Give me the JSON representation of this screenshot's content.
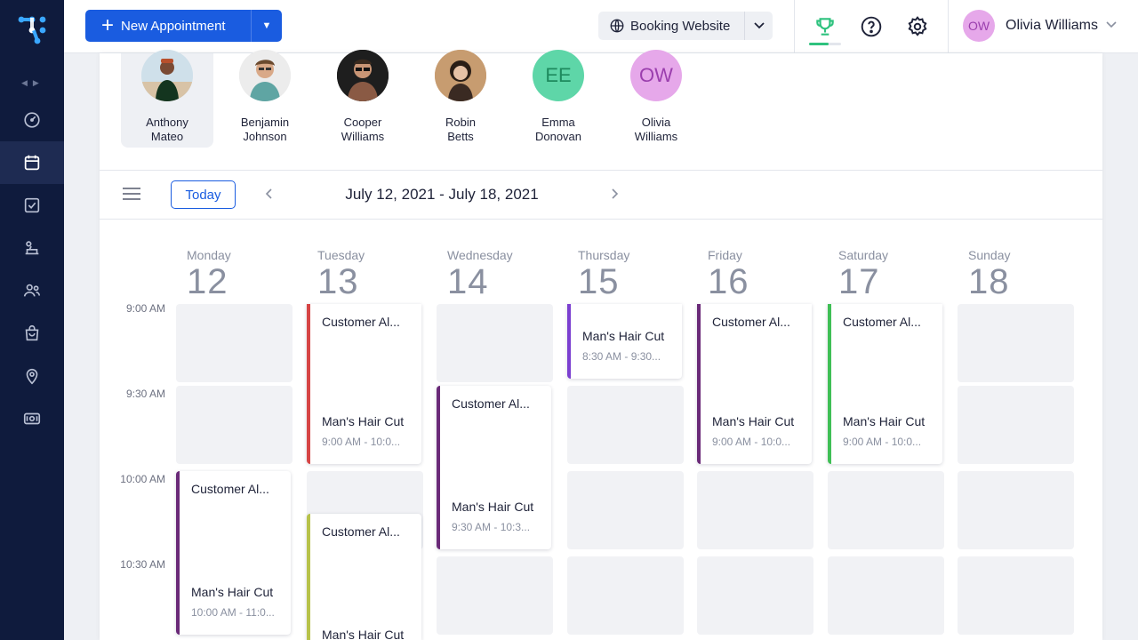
{
  "sidebar": {
    "items": [
      {
        "name": "dashboard-icon"
      },
      {
        "name": "calendar-icon"
      },
      {
        "name": "tasks-icon"
      },
      {
        "name": "services-icon"
      },
      {
        "name": "customers-icon"
      },
      {
        "name": "products-icon"
      },
      {
        "name": "locations-icon"
      },
      {
        "name": "payments-icon"
      }
    ],
    "active": "calendar-icon"
  },
  "header": {
    "new_appointment_label": "New Appointment",
    "booking_website_label": "Booking Website",
    "user_initials": "OW",
    "user_name": "Olivia Williams"
  },
  "staff": [
    {
      "first": "Anthony",
      "last": "Mateo",
      "initials": "",
      "selected": true
    },
    {
      "first": "Benjamin",
      "last": "Johnson",
      "initials": ""
    },
    {
      "first": "Cooper",
      "last": "Williams",
      "initials": ""
    },
    {
      "first": "Robin",
      "last": "Betts",
      "initials": ""
    },
    {
      "first": "Emma",
      "last": "Donovan",
      "initials": "EE"
    },
    {
      "first": "Olivia",
      "last": "Williams",
      "initials": "OW"
    }
  ],
  "toolbar": {
    "today_label": "Today",
    "date_range": "July 12, 2021 - July 18, 2021"
  },
  "calendar": {
    "days": [
      {
        "name": "Monday",
        "date": "12"
      },
      {
        "name": "Tuesday",
        "date": "13"
      },
      {
        "name": "Wednesday",
        "date": "14"
      },
      {
        "name": "Thursday",
        "date": "15"
      },
      {
        "name": "Friday",
        "date": "16"
      },
      {
        "name": "Saturday",
        "date": "17"
      },
      {
        "name": "Sunday",
        "date": "18"
      }
    ],
    "times": [
      "9:00 AM",
      "9:30 AM",
      "10:00 AM",
      "10:30 AM"
    ],
    "appointments": [
      {
        "customer": "Customer Al...",
        "service": "Man's Hair Cut",
        "time": "10:00 AM - 11:0...",
        "color": "#6a2a78"
      },
      {
        "customer": "Customer Al...",
        "service": "Man's Hair Cut",
        "time": "9:00 AM - 10:0...",
        "color": "#d64545"
      },
      {
        "customer": "Customer Al...",
        "service": "Man's Hair Cut",
        "time": "",
        "color": "#b7c24a"
      },
      {
        "customer": "Customer Al...",
        "service": "Man's Hair Cut",
        "time": "9:30 AM - 10:3...",
        "color": "#6a2a78"
      },
      {
        "customer": "",
        "service": "Man's Hair Cut",
        "time": "8:30 AM - 9:30...",
        "color": "#7b3fd0"
      },
      {
        "customer": "Customer Al...",
        "service": "Man's Hair Cut",
        "time": "9:00 AM - 10:0...",
        "color": "#6a2a78"
      },
      {
        "customer": "Customer Al...",
        "service": "Man's Hair Cut",
        "time": "9:00 AM - 10:0...",
        "color": "#3fbf55"
      }
    ]
  },
  "colors": {
    "sidebar_bg": "#0f1b3d",
    "accent": "#1a5ce0",
    "success": "#2ec27e"
  }
}
